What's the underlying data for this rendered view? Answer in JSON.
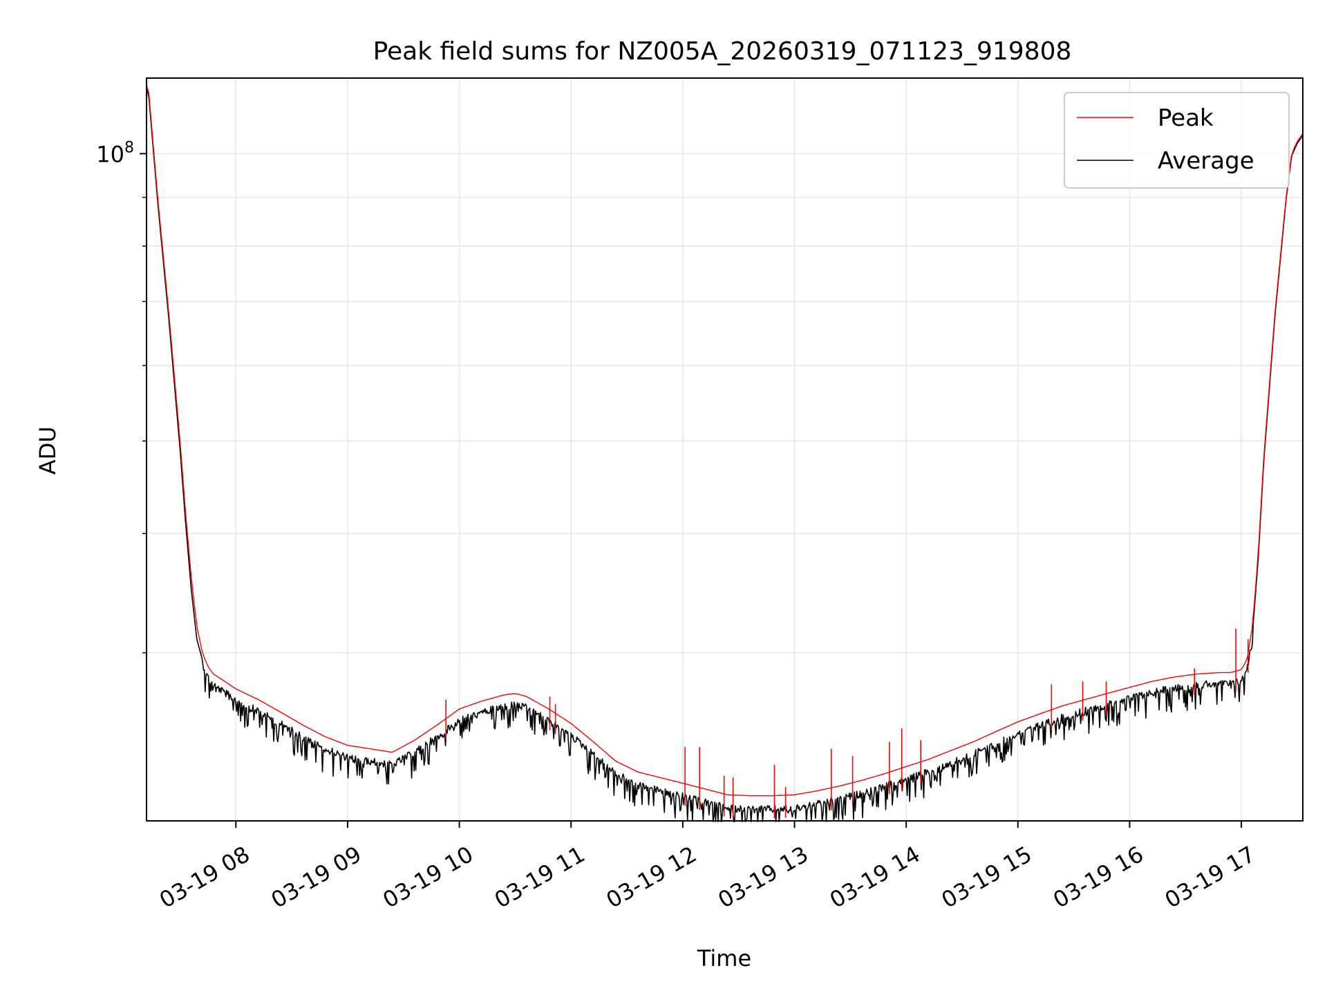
{
  "chart_data": {
    "type": "line",
    "title": "Peak field sums for NZ005A_20260319_071123_919808",
    "xlabel": "Time",
    "ylabel": "ADU",
    "yscale": "log",
    "grid": true,
    "legend_position": "top-right",
    "xlim": [
      7.2,
      17.55
    ],
    "ylim": [
      20000000,
      120000000
    ],
    "x_unit": "hour of day (2026-03-19)",
    "x_ticks": [
      8,
      9,
      10,
      11,
      12,
      13,
      14,
      15,
      16,
      17
    ],
    "x_tick_labels": [
      "03-19 08",
      "03-19 09",
      "03-19 10",
      "03-19 11",
      "03-19 12",
      "03-19 13",
      "03-19 14",
      "03-19 15",
      "03-19 16",
      "03-19 17"
    ],
    "y_major_ticks": [
      100000000
    ],
    "y_major_tick_labels": [
      {
        "base": "10",
        "exp": "8"
      }
    ],
    "y_minor_ticks": [
      30000000,
      40000000,
      50000000,
      60000000,
      70000000,
      80000000,
      90000000
    ],
    "colors": {
      "peak": "#ff0000",
      "average": "#000000",
      "grid": "#e6e6e6",
      "legend_border": "#cccccc"
    },
    "series": [
      {
        "name": "Peak",
        "x": [
          7.2,
          7.22,
          7.3,
          7.4,
          7.5,
          7.55,
          7.6,
          7.65,
          7.7,
          7.75,
          7.8,
          7.9,
          8.0,
          8.2,
          8.4,
          8.6,
          8.8,
          9.0,
          9.2,
          9.4,
          9.6,
          9.8,
          10.0,
          10.2,
          10.4,
          10.5,
          10.6,
          10.8,
          11.0,
          11.2,
          11.4,
          11.6,
          11.8,
          12.0,
          12.2,
          12.4,
          12.6,
          12.8,
          13.0,
          13.2,
          13.4,
          13.6,
          13.8,
          14.0,
          14.2,
          14.4,
          14.6,
          14.8,
          15.0,
          15.2,
          15.4,
          15.6,
          15.8,
          16.0,
          16.2,
          16.4,
          16.6,
          16.8,
          16.9,
          17.0,
          17.05,
          17.1,
          17.15,
          17.2,
          17.3,
          17.4,
          17.45,
          17.5,
          17.55
        ],
        "y": [
          118000000,
          116000000,
          90000000,
          68000000,
          50000000,
          42000000,
          36000000,
          32000000,
          30000000,
          29000000,
          28500000,
          28000000,
          27500000,
          26800000,
          26000000,
          25200000,
          24500000,
          24000000,
          23800000,
          23600000,
          24300000,
          25200000,
          26200000,
          26700000,
          27100000,
          27200000,
          27000000,
          26200000,
          25300000,
          24200000,
          23100000,
          22500000,
          22200000,
          21900000,
          21600000,
          21300000,
          21250000,
          21250000,
          21300000,
          21500000,
          21750000,
          22050000,
          22400000,
          22800000,
          23200000,
          23700000,
          24200000,
          24800000,
          25400000,
          25900000,
          26400000,
          26800000,
          27200000,
          27600000,
          28000000,
          28300000,
          28500000,
          28600000,
          28600000,
          28800000,
          29500000,
          32000000,
          38000000,
          48000000,
          68000000,
          90000000,
          100000000,
          103000000,
          105000000
        ],
        "spikes": [
          {
            "x": 9.88,
            "y": 26800000
          },
          {
            "x": 10.81,
            "y": 27000000
          },
          {
            "x": 10.86,
            "y": 26500000
          },
          {
            "x": 12.02,
            "y": 23900000
          },
          {
            "x": 12.15,
            "y": 23900000
          },
          {
            "x": 12.37,
            "y": 22300000
          },
          {
            "x": 12.45,
            "y": 22200000
          },
          {
            "x": 12.82,
            "y": 22900000
          },
          {
            "x": 12.92,
            "y": 21700000
          },
          {
            "x": 13.33,
            "y": 23800000
          },
          {
            "x": 13.52,
            "y": 23400000
          },
          {
            "x": 13.85,
            "y": 24200000
          },
          {
            "x": 13.96,
            "y": 25000000
          },
          {
            "x": 14.13,
            "y": 24300000
          },
          {
            "x": 15.3,
            "y": 27800000
          },
          {
            "x": 15.58,
            "y": 28000000
          },
          {
            "x": 15.79,
            "y": 28000000
          },
          {
            "x": 16.58,
            "y": 28900000
          },
          {
            "x": 16.95,
            "y": 31800000
          },
          {
            "x": 17.06,
            "y": 31000000
          }
        ]
      },
      {
        "name": "Average",
        "x": [
          7.2,
          7.22,
          7.3,
          7.4,
          7.5,
          7.55,
          7.6,
          7.65,
          7.7,
          7.75,
          7.8,
          7.9,
          8.0,
          8.2,
          8.4,
          8.6,
          8.8,
          9.0,
          9.2,
          9.4,
          9.6,
          9.8,
          10.0,
          10.2,
          10.4,
          10.5,
          10.6,
          10.8,
          11.0,
          11.2,
          11.4,
          11.6,
          11.8,
          12.0,
          12.2,
          12.4,
          12.6,
          12.8,
          13.0,
          13.2,
          13.4,
          13.6,
          13.8,
          14.0,
          14.2,
          14.4,
          14.6,
          14.8,
          15.0,
          15.2,
          15.4,
          15.6,
          15.8,
          16.0,
          16.2,
          16.4,
          16.6,
          16.8,
          16.9,
          17.0,
          17.05,
          17.1,
          17.15,
          17.2,
          17.3,
          17.4,
          17.45,
          17.5,
          17.55
        ],
        "y": [
          117000000,
          115000000,
          89000000,
          67000000,
          49000000,
          41000000,
          35000000,
          31000000,
          29500000,
          28500000,
          28000000,
          27500000,
          27000000,
          26300000,
          25500000,
          24700000,
          24000000,
          23500000,
          23300000,
          23100000,
          23800000,
          24700000,
          25700000,
          26200000,
          26600000,
          26700000,
          26500000,
          25700000,
          24800000,
          23700000,
          22600000,
          22000000,
          21700000,
          21400000,
          21100000,
          20800000,
          20750000,
          20750000,
          20800000,
          21000000,
          21250000,
          21550000,
          21900000,
          22300000,
          22700000,
          23200000,
          23700000,
          24300000,
          24900000,
          25400000,
          25900000,
          26300000,
          26700000,
          27100000,
          27500000,
          27800000,
          28000000,
          28100000,
          28100000,
          28300000,
          29000000,
          31500000,
          37500000,
          47500000,
          67500000,
          89500000,
          99500000,
          102500000,
          104500000
        ],
        "noise_fraction": 0.03
      }
    ]
  }
}
